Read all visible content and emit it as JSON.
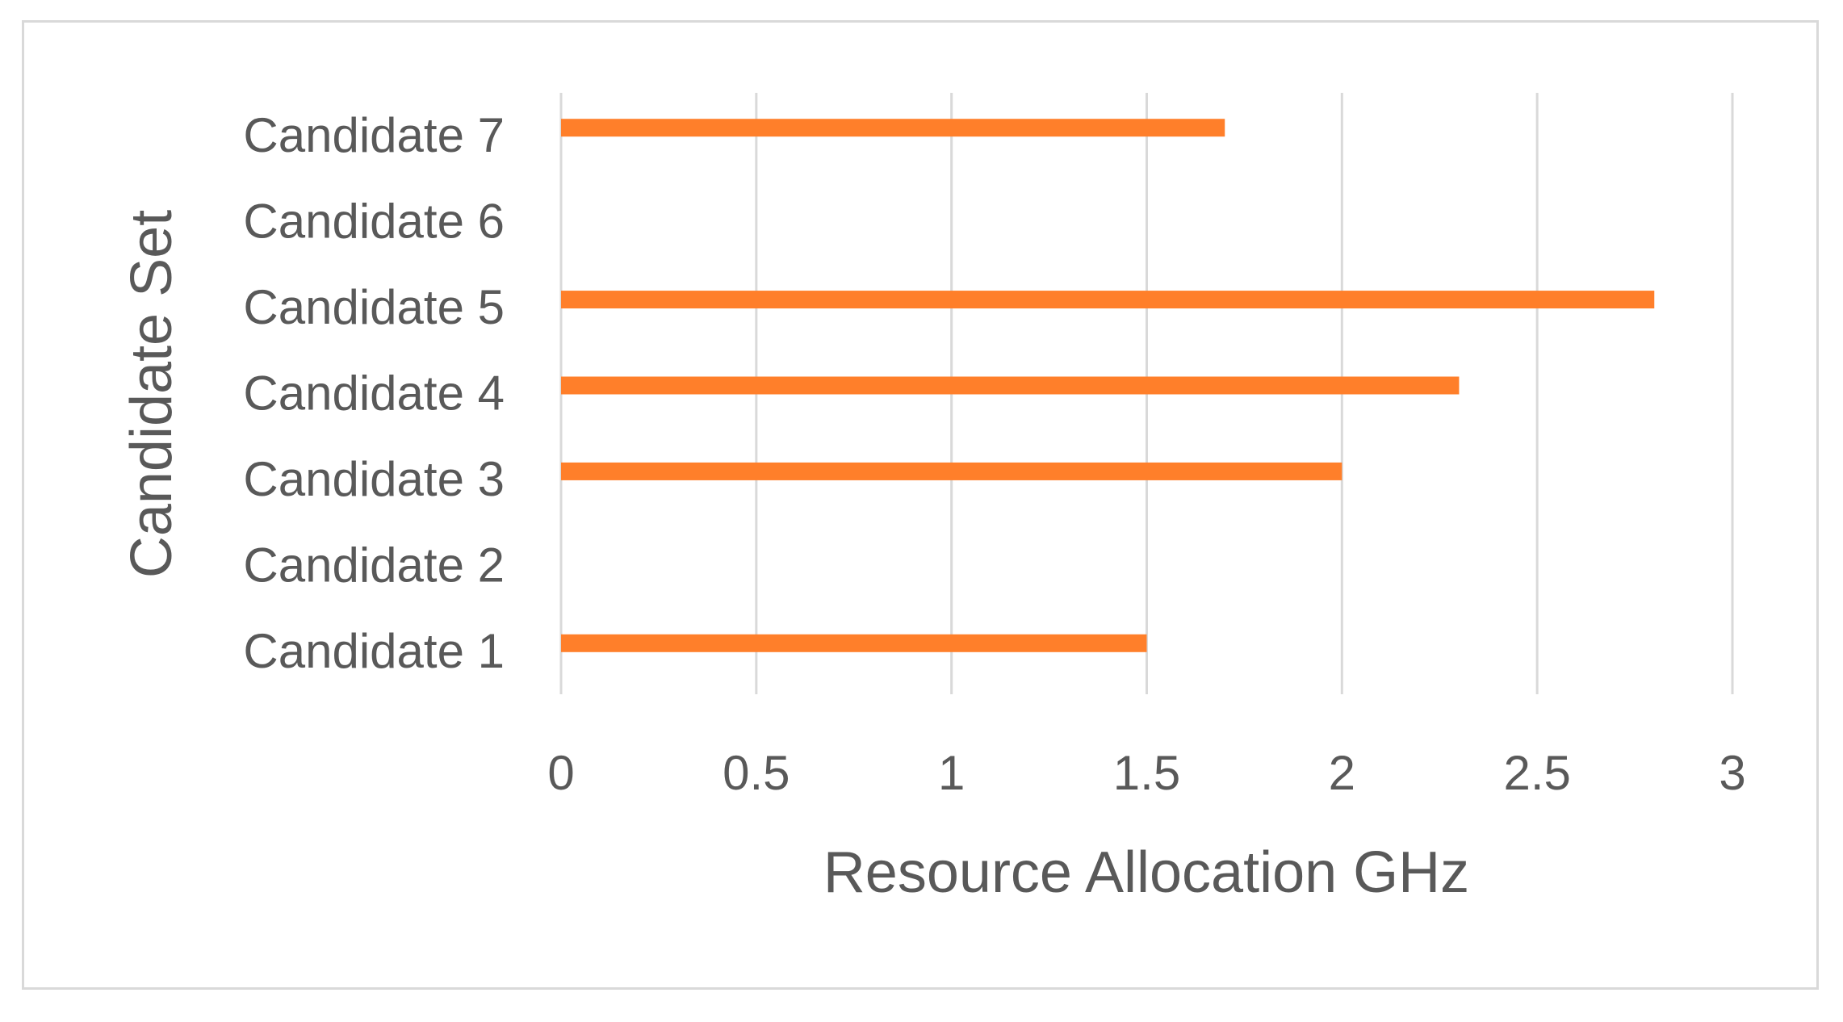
{
  "chart_data": {
    "type": "bar",
    "orientation": "horizontal",
    "title": "",
    "xlabel": "Resource Allocation GHz",
    "ylabel": "Candidate Set",
    "categories": [
      "Candidate 1",
      "Candidate 2",
      "Candidate 3",
      "Candidate 4",
      "Candidate 5",
      "Candidate 6",
      "Candidate 7"
    ],
    "values": [
      1.5,
      0,
      2.0,
      2.3,
      2.8,
      0,
      1.7
    ],
    "xlim": [
      0,
      3
    ],
    "xticks": [
      "0",
      "0.5",
      "1",
      "1.5",
      "2",
      "2.5",
      "3"
    ],
    "xtick_values": [
      0,
      0.5,
      1,
      1.5,
      2,
      2.5,
      3
    ],
    "grid": true,
    "legend": "none",
    "bar_color": "#ff7f2a",
    "grid_color": "#d9d9d9",
    "text_color": "#595959",
    "border_color": "#d9d9d9"
  }
}
